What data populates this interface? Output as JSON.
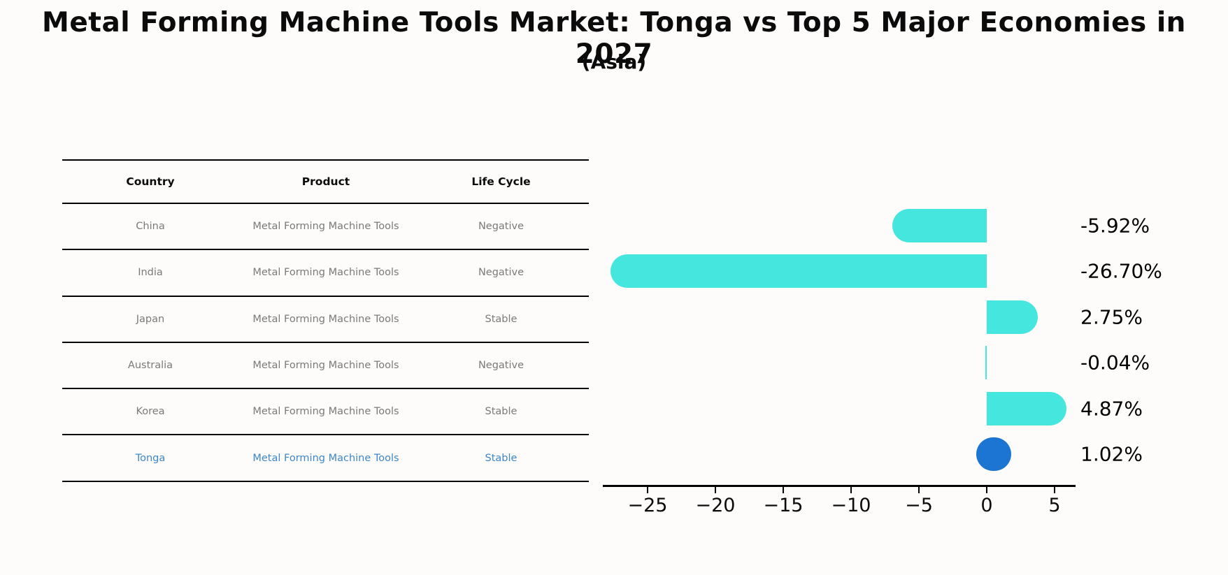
{
  "title": "Metal Forming Machine Tools Market: Tonga vs Top 5 Major Economies in 2027",
  "subtitle": "(Asia)",
  "colors": {
    "background": "#fdfcfa",
    "bar_default": "#45E6DE",
    "bar_highlight": "#1C75D3",
    "table_text": "#7a7a7a",
    "table_highlight_text": "#3d87c9",
    "axis": "#000000"
  },
  "table": {
    "headers": [
      "Country",
      "Product",
      "Life Cycle"
    ],
    "rows": [
      {
        "country": "China",
        "product": "Metal Forming Machine Tools",
        "life_cycle": "Negative",
        "highlight": false
      },
      {
        "country": "India",
        "product": "Metal Forming Machine Tools",
        "life_cycle": "Negative",
        "highlight": false
      },
      {
        "country": "Japan",
        "product": "Metal Forming Machine Tools",
        "life_cycle": "Stable",
        "highlight": false
      },
      {
        "country": "Australia",
        "product": "Metal Forming Machine Tools",
        "life_cycle": "Negative",
        "highlight": false
      },
      {
        "country": "Korea",
        "product": "Metal Forming Machine Tools",
        "life_cycle": "Stable",
        "highlight": false
      },
      {
        "country": "Tonga",
        "product": "Metal Forming Machine Tools",
        "life_cycle": "Stable",
        "highlight": true
      }
    ]
  },
  "chart_data": {
    "type": "bar",
    "orientation": "horizontal",
    "title": "Metal Forming Machine Tools Market: Tonga vs Top 5 Major Economies in 2027",
    "subtitle": "(Asia)",
    "categories": [
      "China",
      "India",
      "Japan",
      "Australia",
      "Korea",
      "Tonga"
    ],
    "values": [
      -5.92,
      -26.7,
      2.75,
      -0.04,
      4.87,
      1.02
    ],
    "value_labels": [
      "-5.92%",
      "-26.70%",
      "2.75%",
      "-0.04%",
      "4.87%",
      "1.02%"
    ],
    "highlight_category": "Tonga",
    "bar_color": "#45E6DE",
    "highlight_color": "#1C75D3",
    "xlim": [
      -28.3,
      6.5
    ],
    "x_ticks": [
      -25,
      -20,
      -15,
      -10,
      -5,
      0,
      5
    ],
    "x_tick_labels": [
      "−25",
      "−20",
      "−15",
      "−10",
      "−5",
      "0",
      "5"
    ],
    "grid": false,
    "legend": false,
    "xlabel": "",
    "ylabel": ""
  }
}
